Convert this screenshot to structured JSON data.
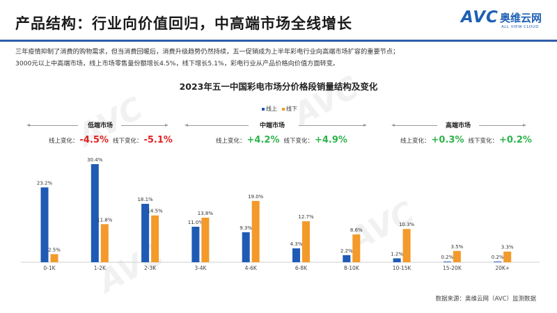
{
  "header": {
    "title": "产品结构：行业向价值回归，中高端市场全线增长",
    "logo_text": "AVC",
    "logo_cn": "奥维云网",
    "logo_sub": "ALL VIEW CLOUD"
  },
  "intro": {
    "line1": "三年疫情抑制了消费的购物需求，但当消费回暖后，消费升级趋势仍然持续，五一促销成为上半年彩电行业向高端市场扩容的重要节点；",
    "line2": "3000元以上中高端市场，线上市场零售量份额增长4.5%，线下增长5.1%，彩电行业从产品价格向价值方面转变。"
  },
  "segments": [
    {
      "name": "低端市场",
      "online_label": "线上变化：",
      "online_value": "-4.5%",
      "online_sign": "neg",
      "offline_label": "线下变化：",
      "offline_value": "-5.1%",
      "offline_sign": "neg"
    },
    {
      "name": "中端市场",
      "online_label": "线上变化：",
      "online_value": "+4.2%",
      "online_sign": "pos",
      "offline_label": "线下变化：",
      "offline_value": "+4.9%",
      "offline_sign": "pos"
    },
    {
      "name": "高端市场",
      "online_label": "线上变化：",
      "online_value": "+0.3%",
      "online_sign": "pos",
      "offline_label": "线下变化：",
      "offline_value": "+0.2%",
      "offline_sign": "pos"
    }
  ],
  "source": "数据来源：奥维云网（AVC）监测数据",
  "watermark": "AVC",
  "colors": {
    "online": "#1f5bb5",
    "offline": "#f39a2b",
    "title_rule": "#2f5dab"
  },
  "chart_data": {
    "type": "bar",
    "title": "2023年五一中国彩电市场分价格段销量结构及变化",
    "categories": [
      "0-1K",
      "1-2K",
      "2-3K",
      "3-4K",
      "4-6K",
      "6-8K",
      "8-10K",
      "10-15K",
      "15-20K",
      "20K+"
    ],
    "series": [
      {
        "name": "线上",
        "values": [
          23.2,
          30.4,
          18.1,
          11.0,
          9.3,
          4.3,
          2.2,
          1.2,
          0.2,
          0.2
        ],
        "labels": [
          "23.2%",
          "30.4%",
          "18.1%",
          "11.0%",
          "9.3%",
          "4.3%",
          "2.2%",
          "1.2%",
          "0.2%",
          "0.2%"
        ]
      },
      {
        "name": "线下",
        "values": [
          2.5,
          11.8,
          14.5,
          13.8,
          19.0,
          12.7,
          8.6,
          10.3,
          3.5,
          3.3
        ],
        "labels": [
          "2.5%",
          "11.8%",
          "14.5%",
          "13.8%",
          "19.0%",
          "12.7%",
          "8.6%",
          "10.3%",
          "3.5%",
          "3.3%"
        ]
      }
    ],
    "ylim": [
      0,
      32
    ],
    "legend_position": "top-center",
    "grid": false
  }
}
